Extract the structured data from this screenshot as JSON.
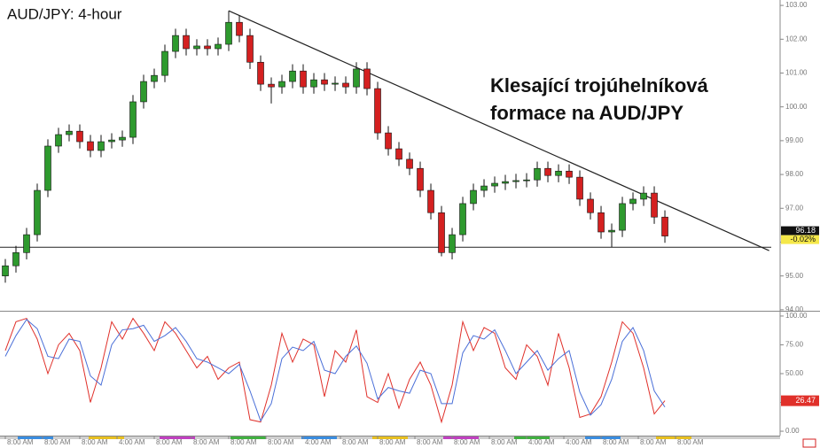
{
  "chart_data": [
    {
      "type": "candlestick",
      "title": "AUD/JPY: 4-hour",
      "annotation": [
        "Klesající trojúhelníková",
        "formace na AUD/JPY"
      ],
      "open": [
        95.0,
        95.3,
        95.69,
        96.22,
        97.53,
        98.84,
        99.18,
        99.28,
        98.97,
        98.71,
        98.97,
        99.02,
        99.1,
        100.15,
        100.75,
        100.93,
        101.64,
        102.11,
        101.72,
        101.8,
        101.72,
        101.85,
        102.5,
        102.11,
        101.32,
        100.67,
        100.59,
        100.75,
        101.06,
        100.59,
        100.8,
        100.67,
        100.7,
        100.59,
        101.12,
        100.54,
        99.23,
        98.76,
        98.45,
        98.18,
        97.53,
        96.87,
        95.69,
        96.22,
        97.14,
        97.53,
        97.66,
        97.74,
        97.79,
        97.82,
        97.84,
        98.18,
        97.97,
        98.1,
        97.92,
        97.27,
        96.87,
        96.3,
        96.35,
        97.14,
        97.27,
        97.45,
        96.74
      ],
      "high": [
        95.5,
        95.89,
        96.42,
        97.73,
        99.04,
        99.38,
        99.48,
        99.48,
        99.17,
        99.17,
        99.22,
        99.3,
        100.35,
        100.95,
        101.13,
        101.84,
        102.31,
        102.31,
        102.0,
        102.0,
        102.05,
        102.84,
        102.7,
        102.31,
        101.52,
        100.87,
        100.95,
        101.26,
        101.26,
        101.0,
        101.0,
        100.9,
        100.9,
        101.32,
        101.32,
        100.74,
        99.43,
        98.96,
        98.65,
        98.38,
        97.73,
        97.07,
        96.42,
        97.34,
        97.73,
        97.86,
        97.94,
        97.99,
        98.02,
        98.04,
        98.38,
        98.38,
        98.3,
        98.3,
        98.12,
        97.47,
        97.07,
        96.55,
        97.34,
        97.47,
        97.65,
        97.65,
        96.94
      ],
      "low": [
        94.8,
        95.1,
        95.49,
        96.02,
        97.33,
        98.64,
        98.98,
        98.77,
        98.51,
        98.51,
        98.77,
        98.82,
        98.9,
        99.95,
        100.55,
        100.73,
        101.44,
        101.52,
        101.52,
        101.52,
        101.52,
        101.65,
        101.91,
        101.12,
        100.47,
        100.1,
        100.39,
        100.55,
        100.39,
        100.39,
        100.47,
        100.47,
        100.39,
        100.39,
        100.34,
        99.03,
        98.56,
        98.25,
        97.98,
        97.33,
        96.67,
        95.58,
        95.49,
        96.02,
        96.94,
        97.33,
        97.46,
        97.54,
        97.59,
        97.62,
        97.64,
        97.77,
        97.77,
        97.72,
        97.07,
        96.67,
        96.1,
        95.85,
        96.15,
        96.94,
        97.07,
        96.54,
        95.98
      ],
      "close": [
        95.3,
        95.69,
        96.22,
        97.53,
        98.84,
        99.18,
        99.28,
        98.97,
        98.71,
        98.97,
        99.02,
        99.1,
        100.15,
        100.75,
        100.93,
        101.64,
        102.11,
        101.72,
        101.8,
        101.72,
        101.85,
        102.5,
        102.11,
        101.32,
        100.67,
        100.59,
        100.75,
        101.06,
        100.59,
        100.8,
        100.67,
        100.7,
        100.59,
        101.12,
        100.54,
        99.23,
        98.76,
        98.45,
        98.18,
        97.53,
        96.87,
        95.69,
        96.22,
        97.14,
        97.53,
        97.66,
        97.74,
        97.79,
        97.82,
        97.84,
        98.18,
        97.97,
        98.1,
        97.92,
        97.27,
        96.87,
        96.3,
        96.35,
        97.14,
        97.27,
        97.45,
        96.74,
        96.18
      ],
      "up_color": "#2e9a2e",
      "down_color": "#d42020",
      "change_label": "-0.02%",
      "trendline": {
        "x": [
          21,
          71.8
        ],
        "y": [
          102.84,
          95.75
        ]
      },
      "support": 95.85,
      "xlim": [
        -0.5,
        72.83
      ],
      "ylim": [
        93.97,
        103.16
      ],
      "yticks": [
        {
          "value": 94,
          "label": "94.00"
        },
        {
          "value": 95,
          "label": "95.00"
        },
        {
          "value": 96,
          "label": "96.00"
        },
        {
          "value": 97,
          "label": "97.00"
        },
        {
          "value": 98,
          "label": "98.00"
        },
        {
          "value": 99,
          "label": "99.00"
        },
        {
          "value": 100,
          "label": "100.00"
        },
        {
          "value": 101,
          "label": "101.00"
        },
        {
          "value": 102,
          "label": "102.00"
        },
        {
          "value": 103,
          "label": "103.00"
        }
      ]
    },
    {
      "type": "line",
      "series": [
        {
          "color": "#e0302a",
          "values": [
            70,
            95,
            98,
            80,
            50,
            75,
            85,
            70,
            25,
            55,
            95,
            80,
            98,
            85,
            70,
            95,
            85,
            70,
            55,
            65,
            45,
            55,
            60,
            10,
            8,
            40,
            85,
            60,
            80,
            75,
            30,
            70,
            60,
            88,
            30,
            25,
            50,
            20,
            45,
            60,
            40,
            8,
            40,
            95,
            70,
            90,
            85,
            55,
            45,
            75,
            65,
            40,
            85,
            55,
            12,
            15,
            30,
            60,
            95,
            85,
            55,
            15,
            26.47
          ]
        },
        {
          "color": "#4a6fd8",
          "values": [
            65,
            83,
            97,
            89,
            65,
            63,
            80,
            78,
            48,
            40,
            75,
            88,
            89,
            92,
            78,
            83,
            90,
            78,
            63,
            60,
            55,
            50,
            58,
            35,
            9,
            24,
            63,
            73,
            70,
            78,
            53,
            50,
            65,
            74,
            59,
            28,
            38,
            35,
            33,
            53,
            50,
            24,
            24,
            68,
            83,
            80,
            88,
            70,
            50,
            60,
            70,
            53,
            63,
            70,
            34,
            14,
            23,
            45,
            78,
            90,
            70,
            35,
            21
          ]
        }
      ],
      "xlim": [
        -0.5,
        72.83
      ],
      "ylim": [
        -3.8,
        103.8
      ],
      "yticks": [
        {
          "value": 0,
          "label": "0.00"
        },
        {
          "value": 25,
          "label": "25.00"
        },
        {
          "value": 50,
          "label": "50.00"
        },
        {
          "value": 75,
          "label": "75.00"
        },
        {
          "value": 100,
          "label": "100.00"
        }
      ],
      "xticks": [
        {
          "value": 0,
          "label": "8:00 AM"
        },
        {
          "value": 3.5,
          "label": "8:00 AM"
        },
        {
          "value": 7,
          "label": "8:00 AM"
        },
        {
          "value": 10.5,
          "label": "4:00 AM"
        },
        {
          "value": 14,
          "label": "8:00 AM"
        },
        {
          "value": 17.5,
          "label": "8:00 AM"
        },
        {
          "value": 21,
          "label": "8:00 AM"
        },
        {
          "value": 24.5,
          "label": "8:00 AM"
        },
        {
          "value": 28,
          "label": "4:00 AM"
        },
        {
          "value": 31.5,
          "label": "8:00 AM"
        },
        {
          "value": 35,
          "label": "8:00 AM"
        },
        {
          "value": 38.5,
          "label": "8:00 AM"
        },
        {
          "value": 42,
          "label": "8:00 AM"
        },
        {
          "value": 45.5,
          "label": "8:00 AM"
        },
        {
          "value": 49,
          "label": "4:00 AM"
        },
        {
          "value": 52.5,
          "label": "4:00 AM"
        },
        {
          "value": 56,
          "label": "8:00 AM"
        },
        {
          "value": 59.5,
          "label": "8:00 AM"
        },
        {
          "value": 63,
          "label": "8:00 AM"
        }
      ]
    }
  ]
}
